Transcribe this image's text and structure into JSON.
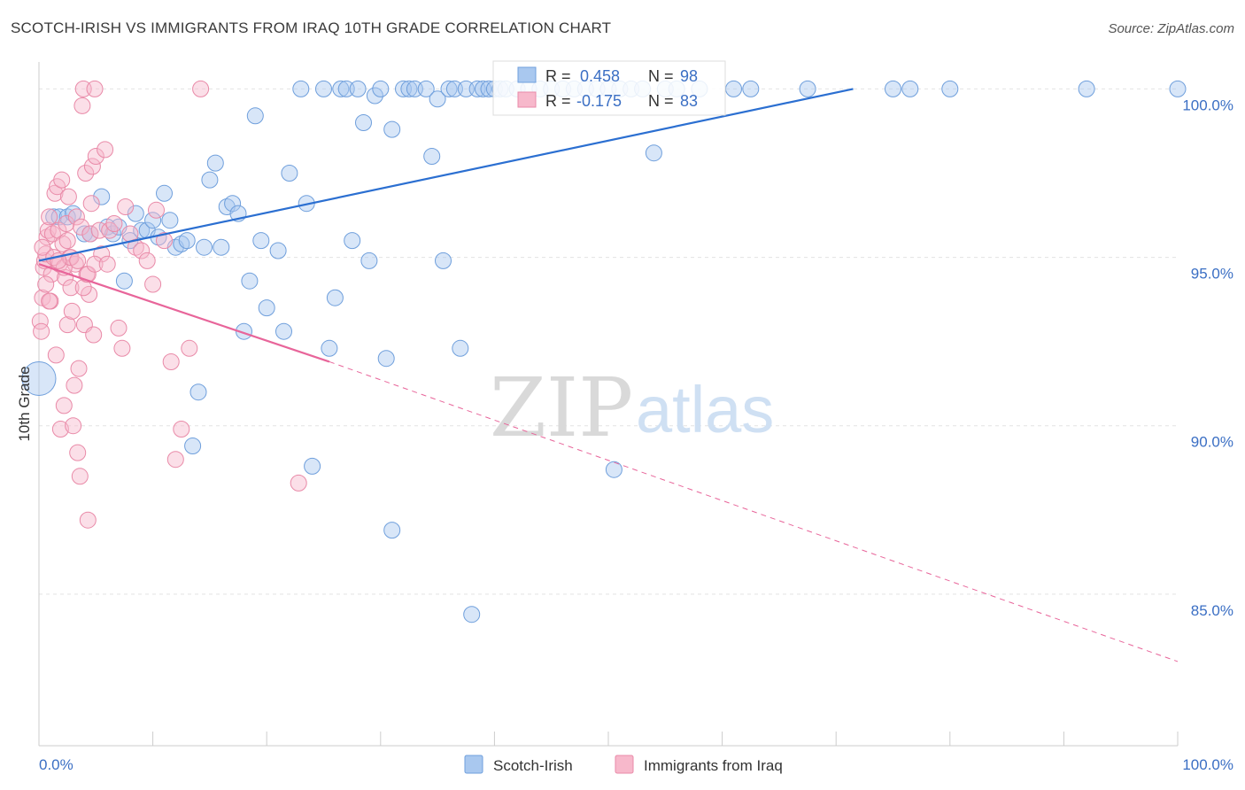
{
  "header": {
    "title": "SCOTCH-IRISH VS IMMIGRANTS FROM IRAQ 10TH GRADE CORRELATION CHART",
    "source": "Source: ZipAtlas.com"
  },
  "watermark": {
    "zip": "ZIP",
    "atlas": "atlas"
  },
  "chart_data": {
    "type": "scatter",
    "ylabel": "10th Grade",
    "xlim": [
      0,
      100
    ],
    "ylim": [
      80.5,
      100.8
    ],
    "x_tick_labels": [
      {
        "value": 0,
        "label": "0.0%"
      },
      {
        "value": 100,
        "label": "100.0%"
      }
    ],
    "y_tick_labels": [
      {
        "value": 100,
        "label": "100.0%"
      },
      {
        "value": 95,
        "label": "95.0%"
      },
      {
        "value": 90,
        "label": "90.0%"
      },
      {
        "value": 85,
        "label": "85.0%"
      }
    ],
    "grid": "horizontal dashed",
    "legend_position": "bottom-center",
    "stats_box": [
      {
        "r_label": "R =",
        "r_value": "0.458",
        "n_label": "N =",
        "n_value": "98"
      },
      {
        "r_label": "R =",
        "r_value": "-0.175",
        "n_label": "N =",
        "n_value": "83"
      }
    ],
    "series": [
      {
        "name": "Scotch-Irish",
        "color": "#a9c8ef",
        "stroke": "#6f9fdc",
        "trend_color": "#2b6fd1",
        "trend": {
          "x0": 0,
          "y0": 94.9,
          "x1": 71.5,
          "y1": 100.0
        },
        "points": [
          [
            0,
            91.4
          ],
          [
            1.3,
            96.2
          ],
          [
            1.8,
            96.2
          ],
          [
            2.5,
            96.2
          ],
          [
            3,
            96.3
          ],
          [
            4,
            95.7
          ],
          [
            4.5,
            95.7
          ],
          [
            5.5,
            96.8
          ],
          [
            6,
            95.9
          ],
          [
            6.5,
            95.7
          ],
          [
            7,
            95.9
          ],
          [
            7.5,
            94.3
          ],
          [
            8,
            95.5
          ],
          [
            8.5,
            96.3
          ],
          [
            9,
            95.8
          ],
          [
            9.5,
            95.8
          ],
          [
            10,
            96.1
          ],
          [
            10.5,
            95.6
          ],
          [
            11,
            96.9
          ],
          [
            11.5,
            96.1
          ],
          [
            12,
            95.3
          ],
          [
            12.5,
            95.4
          ],
          [
            13,
            95.5
          ],
          [
            13.5,
            89.4
          ],
          [
            14,
            91.0
          ],
          [
            14.5,
            95.3
          ],
          [
            15,
            97.3
          ],
          [
            15.5,
            97.8
          ],
          [
            16,
            95.3
          ],
          [
            16.5,
            96.5
          ],
          [
            17,
            96.6
          ],
          [
            17.5,
            96.3
          ],
          [
            18,
            92.8
          ],
          [
            18.5,
            94.3
          ],
          [
            19,
            99.2
          ],
          [
            19.5,
            95.5
          ],
          [
            20,
            93.5
          ],
          [
            21,
            95.2
          ],
          [
            21.5,
            92.8
          ],
          [
            22,
            97.5
          ],
          [
            23,
            100
          ],
          [
            23.5,
            96.6
          ],
          [
            24,
            88.8
          ],
          [
            25,
            100
          ],
          [
            25.5,
            92.3
          ],
          [
            26,
            93.8
          ],
          [
            26.5,
            100
          ],
          [
            27,
            100
          ],
          [
            27.5,
            95.5
          ],
          [
            28,
            100
          ],
          [
            28.5,
            99.0
          ],
          [
            29,
            94.9
          ],
          [
            29.5,
            99.8
          ],
          [
            30,
            100
          ],
          [
            30.5,
            92.0
          ],
          [
            31,
            98.8
          ],
          [
            31,
            86.9
          ],
          [
            32,
            100
          ],
          [
            32.5,
            100
          ],
          [
            33,
            100
          ],
          [
            34,
            100
          ],
          [
            34.5,
            98.0
          ],
          [
            35,
            99.7
          ],
          [
            35.5,
            94.9
          ],
          [
            36,
            100
          ],
          [
            36.5,
            100
          ],
          [
            37,
            92.3
          ],
          [
            37.5,
            100
          ],
          [
            38,
            84.4
          ],
          [
            38.5,
            100
          ],
          [
            39,
            100
          ],
          [
            39.5,
            100
          ],
          [
            40,
            100
          ],
          [
            40.5,
            100
          ],
          [
            41,
            100
          ],
          [
            42,
            100
          ],
          [
            43,
            100
          ],
          [
            44,
            100
          ],
          [
            45,
            100
          ],
          [
            46,
            100
          ],
          [
            47,
            100
          ],
          [
            48,
            100
          ],
          [
            49,
            100
          ],
          [
            50,
            100
          ],
          [
            51,
            100
          ],
          [
            52,
            100
          ],
          [
            50.5,
            88.7
          ],
          [
            53,
            100
          ],
          [
            54,
            98.1
          ],
          [
            55,
            100
          ],
          [
            56,
            100
          ],
          [
            58,
            100
          ],
          [
            61,
            100
          ],
          [
            62.5,
            100
          ],
          [
            67.5,
            100
          ],
          [
            75,
            100
          ],
          [
            76.5,
            100
          ],
          [
            80,
            100
          ],
          [
            92,
            100
          ],
          [
            100,
            100
          ]
        ]
      },
      {
        "name": "Immigrants from Iraq",
        "color": "#f7b8cb",
        "stroke": "#e98aa8",
        "trend_color": "#e8659a",
        "trend": {
          "x0": 0,
          "y0": 94.8,
          "x1": 25.5,
          "y1": 91.9
        },
        "trend_extension": {
          "x0": 25.5,
          "y0": 91.9,
          "x1": 100,
          "y1": 83.0
        },
        "points": [
          [
            0.1,
            93.1
          ],
          [
            0.2,
            92.8
          ],
          [
            0.3,
            93.8
          ],
          [
            0.4,
            94.7
          ],
          [
            0.5,
            94.9
          ],
          [
            0.6,
            95.1
          ],
          [
            0.7,
            95.6
          ],
          [
            0.8,
            95.8
          ],
          [
            0.9,
            96.2
          ],
          [
            1.0,
            93.7
          ],
          [
            1.1,
            94.5
          ],
          [
            1.2,
            95.7
          ],
          [
            1.4,
            96.9
          ],
          [
            1.5,
            92.1
          ],
          [
            1.6,
            97.1
          ],
          [
            1.7,
            95.8
          ],
          [
            1.8,
            94.8
          ],
          [
            1.9,
            89.9
          ],
          [
            2.0,
            97.3
          ],
          [
            2.1,
            95.4
          ],
          [
            2.2,
            90.6
          ],
          [
            2.3,
            94.4
          ],
          [
            2.4,
            96.0
          ],
          [
            2.5,
            93.0
          ],
          [
            2.6,
            96.8
          ],
          [
            2.7,
            95.0
          ],
          [
            2.8,
            94.1
          ],
          [
            2.9,
            93.4
          ],
          [
            3.0,
            90.0
          ],
          [
            3.1,
            91.2
          ],
          [
            3.2,
            94.8
          ],
          [
            3.3,
            96.2
          ],
          [
            3.4,
            89.2
          ],
          [
            3.5,
            91.7
          ],
          [
            3.6,
            88.5
          ],
          [
            3.7,
            95.9
          ],
          [
            3.8,
            99.5
          ],
          [
            3.9,
            100
          ],
          [
            4.0,
            93.0
          ],
          [
            4.1,
            97.5
          ],
          [
            4.2,
            94.5
          ],
          [
            4.3,
            87.2
          ],
          [
            4.4,
            93.9
          ],
          [
            4.5,
            95.7
          ],
          [
            4.6,
            96.6
          ],
          [
            4.7,
            97.7
          ],
          [
            4.8,
            92.7
          ],
          [
            4.9,
            100
          ],
          [
            5.0,
            98.0
          ],
          [
            5.3,
            95.8
          ],
          [
            5.5,
            95.1
          ],
          [
            5.8,
            98.2
          ],
          [
            6.2,
            95.8
          ],
          [
            6.6,
            96.0
          ],
          [
            7,
            92.9
          ],
          [
            7.3,
            92.3
          ],
          [
            7.6,
            96.5
          ],
          [
            8,
            95.7
          ],
          [
            8.5,
            95.3
          ],
          [
            9,
            95.2
          ],
          [
            9.5,
            94.9
          ],
          [
            10,
            94.2
          ],
          [
            10.3,
            96.4
          ],
          [
            11,
            95.5
          ],
          [
            11.6,
            91.9
          ],
          [
            12,
            89.0
          ],
          [
            12.5,
            89.9
          ],
          [
            13.2,
            92.3
          ],
          [
            14.2,
            100
          ],
          [
            22.8,
            88.3
          ],
          [
            0.3,
            95.3
          ],
          [
            0.6,
            94.2
          ],
          [
            0.9,
            93.7
          ],
          [
            1.3,
            95.0
          ],
          [
            2.2,
            94.7
          ],
          [
            2.8,
            95.0
          ],
          [
            3.4,
            94.9
          ],
          [
            3.9,
            94.1
          ],
          [
            4.3,
            94.5
          ],
          [
            4.9,
            94.8
          ],
          [
            1.7,
            94.9
          ],
          [
            2.5,
            95.5
          ],
          [
            6.0,
            94.8
          ]
        ]
      }
    ]
  }
}
